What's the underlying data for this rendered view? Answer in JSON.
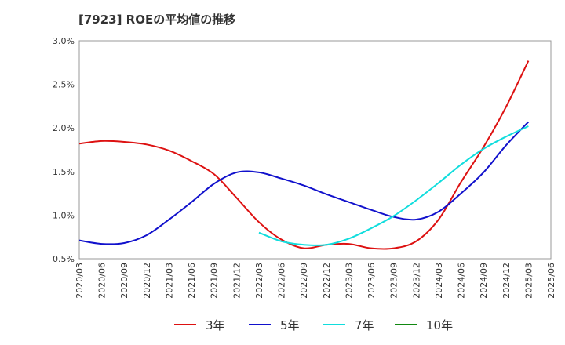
{
  "chart_data": {
    "type": "line",
    "title": "[7923]  ROEの平均値の推移",
    "xlabel": "",
    "ylabel": "",
    "ylim": [
      0.5,
      3.0
    ],
    "yticks": [
      "0.5%",
      "1.0%",
      "1.5%",
      "2.0%",
      "2.5%",
      "3.0%"
    ],
    "ytick_values": [
      0.5,
      1.0,
      1.5,
      2.0,
      2.5,
      3.0
    ],
    "grid": true,
    "legend_position": "bottom",
    "categories": [
      "2020/03",
      "2020/06",
      "2020/09",
      "2020/12",
      "2021/03",
      "2021/06",
      "2021/09",
      "2021/12",
      "2022/03",
      "2022/06",
      "2022/09",
      "2022/12",
      "2023/03",
      "2023/06",
      "2023/09",
      "2023/12",
      "2024/03",
      "2024/06",
      "2024/09",
      "2024/12",
      "2025/03",
      "2025/06"
    ],
    "series": [
      {
        "name": "3年",
        "color": "#dd1111",
        "values": [
          1.82,
          1.85,
          1.84,
          1.81,
          1.74,
          1.62,
          1.47,
          1.2,
          0.92,
          0.72,
          0.62,
          0.66,
          0.67,
          0.62,
          0.62,
          0.7,
          0.95,
          1.38,
          1.78,
          2.24,
          2.77,
          null
        ]
      },
      {
        "name": "5年",
        "color": "#1111cc",
        "values": [
          0.71,
          0.67,
          0.68,
          0.77,
          0.95,
          1.15,
          1.36,
          1.49,
          1.49,
          1.42,
          1.34,
          1.24,
          1.15,
          1.06,
          0.98,
          0.95,
          1.04,
          1.25,
          1.49,
          1.8,
          2.07,
          null
        ]
      },
      {
        "name": "7年",
        "color": "#11dddd",
        "values": [
          null,
          null,
          null,
          null,
          null,
          null,
          null,
          null,
          0.8,
          0.7,
          0.66,
          0.66,
          0.73,
          0.85,
          0.99,
          1.17,
          1.37,
          1.58,
          1.76,
          1.9,
          2.02,
          null
        ]
      },
      {
        "name": "10年",
        "color": "#118811",
        "values": [
          null,
          null,
          null,
          null,
          null,
          null,
          null,
          null,
          null,
          null,
          null,
          null,
          null,
          null,
          null,
          null,
          null,
          null,
          null,
          null,
          null,
          null
        ]
      }
    ]
  }
}
